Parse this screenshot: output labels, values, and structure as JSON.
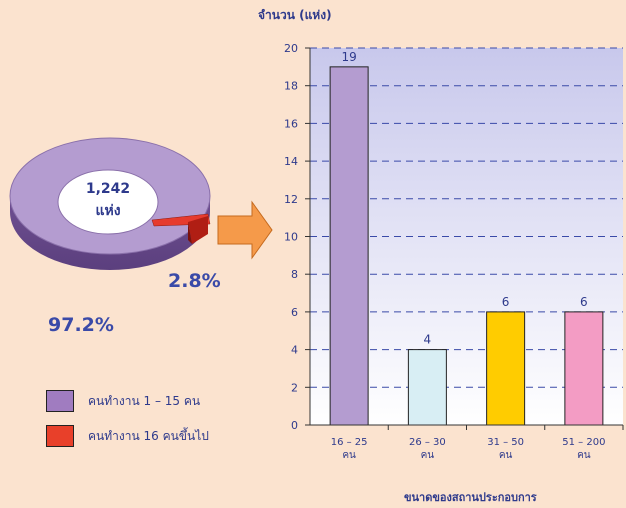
{
  "donut": {
    "center_value": "1,242",
    "center_unit": "แห่ง",
    "pct_major": "97.2%",
    "pct_minor": "2.8%",
    "major_fraction": 0.972,
    "minor_fraction": 0.028,
    "major_color": "#b49cd0",
    "minor_color": "#e63b2e"
  },
  "legend": [
    {
      "label": "คนทำงาน 1 – 15 คน",
      "color": "#a07cc0"
    },
    {
      "label": "คนทำงาน 16 คนขึ้นไป",
      "color": "#e8402a"
    }
  ],
  "chart_data": {
    "type": "bar",
    "ylabel": "จำนวน (แห่ง)",
    "xlabel": "ขนาดของสถานประกอบการ",
    "ylim": [
      0,
      20
    ],
    "yticks": [
      "0",
      "2",
      "4",
      "6",
      "8",
      "10",
      "12",
      "14",
      "16",
      "18",
      "20"
    ],
    "categories": [
      {
        "line1": "16 – 25",
        "line2": "คน"
      },
      {
        "line1": "26 – 30",
        "line2": "คน"
      },
      {
        "line1": "31 – 50",
        "line2": "คน"
      },
      {
        "line1": "51 – 200",
        "line2": "คน"
      }
    ],
    "values": [
      19,
      4,
      6,
      6
    ],
    "value_labels": [
      "19",
      "4",
      "6",
      "6"
    ],
    "bar_colors": [
      "#b49cd0",
      "#d8eef4",
      "#ffcc00",
      "#f39cc4"
    ],
    "grid": "dashed horizontal"
  }
}
